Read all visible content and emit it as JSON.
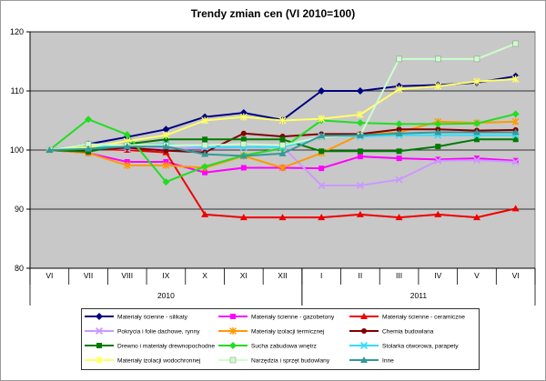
{
  "chart_data": {
    "type": "line",
    "title": "Trendy zmian cen (VI 2010=100)",
    "categories": [
      "VI",
      "VII",
      "VIII",
      "IX",
      "X",
      "XI",
      "XII",
      "I",
      "II",
      "III",
      "IV",
      "V",
      "VI"
    ],
    "groups": [
      {
        "label": "2010",
        "from": 0,
        "to": 6
      },
      {
        "label": "2011",
        "from": 7,
        "to": 12
      }
    ],
    "ylim": [
      80,
      120
    ],
    "yticks": [
      80,
      90,
      100,
      110,
      120
    ],
    "grid": true,
    "legend": "bottom",
    "series": [
      {
        "name": "Materiały ścienne - silikaty",
        "color": "#000080",
        "marker": "diamond",
        "values": [
          100,
          101,
          102.2,
          103.5,
          105.6,
          106.3,
          105.1,
          110,
          110,
          110.8,
          111,
          111.4,
          112.5
        ]
      },
      {
        "name": "Materiały ścienne - gazobetony",
        "color": "#ff00ff",
        "marker": "square",
        "values": [
          100,
          99.5,
          98,
          98,
          96.2,
          97,
          97,
          96.9,
          98.9,
          98.6,
          98.4,
          98.6,
          98.2
        ]
      },
      {
        "name": "Materiały ścienne - ceramiczne",
        "color": "#ee0000",
        "marker": "triangle",
        "values": [
          100,
          100.2,
          100,
          99.6,
          89.1,
          88.6,
          88.6,
          88.6,
          89.1,
          88.6,
          89.1,
          88.6,
          90.1
        ]
      },
      {
        "name": "Pokrycia i folie dachowe, rynny",
        "color": "#cc99ff",
        "marker": "x",
        "values": [
          100,
          100.5,
          100.2,
          100.3,
          100.3,
          100.5,
          100.6,
          94,
          94,
          95,
          98.2,
          98.3,
          98
        ]
      },
      {
        "name": "Materiały izolacji termicznej",
        "color": "#ff9900",
        "marker": "star",
        "values": [
          100,
          99.5,
          97.4,
          97.4,
          97,
          99,
          97,
          99.5,
          102.6,
          103,
          104.8,
          104.6,
          104.8
        ]
      },
      {
        "name": "Chemia budowlana",
        "color": "#800000",
        "marker": "circle",
        "values": [
          100,
          100,
          100.4,
          99.9,
          99.6,
          102.8,
          102.3,
          102.7,
          102.7,
          103.5,
          103.5,
          103.3,
          103.4
        ]
      },
      {
        "name": "Drewno i materiały drewnopochodne",
        "color": "#007a00",
        "marker": "square",
        "values": [
          100,
          99.7,
          101,
          101.8,
          101.8,
          101.8,
          101.8,
          99.8,
          99.8,
          99.8,
          100.6,
          101.8,
          101.8
        ]
      },
      {
        "name": "Sucha zabudowa wnętrz",
        "color": "#22dd22",
        "marker": "diamond",
        "values": [
          100,
          105.2,
          102.6,
          94.6,
          97.2,
          99.1,
          100.3,
          105,
          104.6,
          104.4,
          104.4,
          104.5,
          106.1
        ]
      },
      {
        "name": "Stolarka otworowa, parapety",
        "color": "#33ddff",
        "marker": "x",
        "values": [
          100,
          100.6,
          100.6,
          101,
          100.5,
          100.5,
          100.5,
          102.3,
          102.3,
          102.5,
          102.5,
          102.5,
          102.5
        ]
      },
      {
        "name": "Materiały izolacji wodochronnej",
        "color": "#ffff66",
        "marker": "star",
        "values": [
          100,
          100.5,
          101.5,
          102.5,
          105,
          105.6,
          105,
          105.3,
          106,
          110.3,
          110.8,
          111.6,
          112
        ]
      },
      {
        "name": "Narzędzia i sprzęt budowlany",
        "color": "#ccffcc",
        "marker": "square",
        "values": [
          100,
          101,
          100.8,
          100.8,
          100.8,
          101,
          100.8,
          102.2,
          102.5,
          115.4,
          115.4,
          115.4,
          118
        ]
      },
      {
        "name": "Inne",
        "color": "#339999",
        "marker": "triangle",
        "values": [
          100,
          100.2,
          100.6,
          100.6,
          99.3,
          99,
          99.4,
          102.4,
          102.5,
          102.8,
          103,
          103,
          103
        ]
      }
    ]
  }
}
